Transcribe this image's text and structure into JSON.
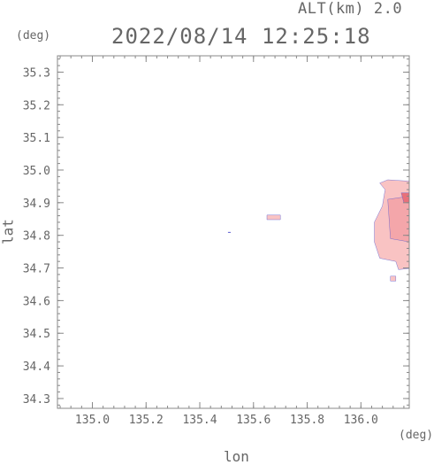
{
  "header": {
    "altitude_label": "ALT(km) 2.0",
    "datetime": "2022/08/14 12:25:18"
  },
  "chart_data": {
    "type": "heatmap",
    "xlabel": "lon",
    "ylabel": "lat",
    "x_unit": "(deg)",
    "y_unit": "(deg)",
    "xlim": [
      134.87,
      136.18
    ],
    "ylim": [
      34.27,
      35.35
    ],
    "x_ticks": [
      135.0,
      135.2,
      135.4,
      135.6,
      135.8,
      136.0
    ],
    "x_tick_labels": [
      "135.0",
      "135.2",
      "135.4",
      "135.6",
      "135.8",
      "136.0"
    ],
    "y_ticks": [
      34.3,
      34.4,
      34.5,
      34.6,
      34.7,
      34.8,
      34.9,
      35.0,
      35.1,
      35.2,
      35.3
    ],
    "y_tick_labels": [
      "34.3",
      "34.4",
      "34.5",
      "34.6",
      "34.7",
      "34.8",
      "34.9",
      "35.0",
      "35.1",
      "35.2",
      "35.3"
    ],
    "grid": false,
    "colors": {
      "echo_light": "#f9c3c3",
      "echo_mid": "#f4a6aa",
      "echo_strong": "#e8707a",
      "edge": "#5a5acf",
      "axis": "#888888"
    },
    "echo_regions": [
      {
        "name": "east-main",
        "lon_min": 136.05,
        "lon_max": 136.18,
        "lat_min": 34.7,
        "lat_max": 34.97,
        "intensity": "light-mid"
      },
      {
        "name": "small-cell",
        "lon_min": 135.65,
        "lon_max": 135.7,
        "lat_min": 34.848,
        "lat_max": 34.862,
        "intensity": "light"
      },
      {
        "name": "south-fragment",
        "lon_min": 136.11,
        "lon_max": 136.13,
        "lat_min": 34.66,
        "lat_max": 34.675,
        "intensity": "light"
      },
      {
        "name": "speck",
        "lon_min": 135.505,
        "lon_max": 135.515,
        "lat_min": 34.809,
        "lat_max": 34.811,
        "intensity": "edge"
      }
    ]
  }
}
